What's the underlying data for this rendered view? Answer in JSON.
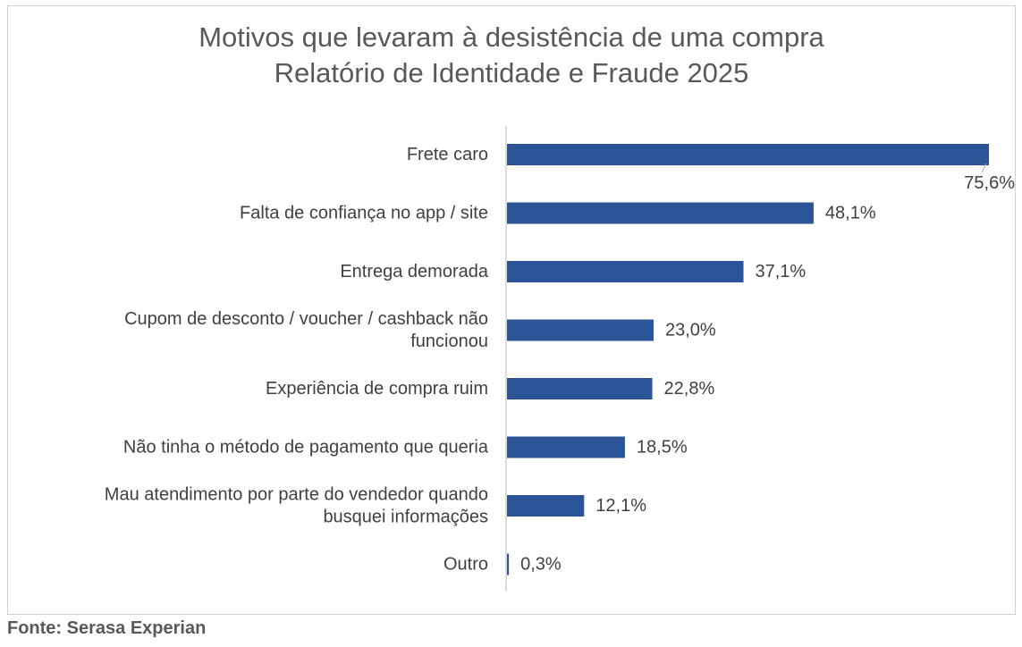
{
  "chart_data": {
    "type": "bar",
    "orientation": "horizontal",
    "title": "Motivos que levaram à desistência de uma compra",
    "subtitle": "Relatório de Identidade e Fraude 2025",
    "categories": [
      [
        "Frete caro"
      ],
      [
        "Falta de confiança no app / site"
      ],
      [
        "Entrega demorada"
      ],
      [
        "Cupom de desconto / voucher / cashback não",
        "funcionou"
      ],
      [
        "Experiência de compra ruim"
      ],
      [
        "Não tinha o método de pagamento que queria"
      ],
      [
        "Mau atendimento por parte do vendedor quando",
        "busquei informações"
      ],
      [
        "Outro"
      ]
    ],
    "values": [
      75.6,
      48.1,
      37.1,
      23.0,
      22.8,
      18.5,
      12.1,
      0.3
    ],
    "data_labels": [
      "75,6%",
      "48,1%",
      "37,1%",
      "23,0%",
      "22,8%",
      "18,5%",
      "12,1%",
      "0,3%"
    ],
    "xlim": [
      0,
      75.6
    ],
    "grid": false,
    "legend": "none",
    "bar_color": "#2B5597"
  },
  "source": "Fonte: Serasa Experian"
}
